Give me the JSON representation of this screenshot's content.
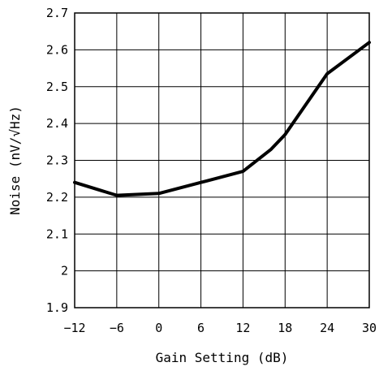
{
  "chart_data": {
    "type": "line",
    "xlabel": "Gain Setting (dB)",
    "ylabel": "Noise (nV/√Hz)",
    "xlim": [
      -12,
      30
    ],
    "ylim": [
      1.9,
      2.7
    ],
    "xticks": [
      "−12",
      "−6",
      "0",
      "6",
      "12",
      "18",
      "24",
      "30"
    ],
    "yticks": [
      "1.9",
      "2",
      "2.1",
      "2.2",
      "2.3",
      "2.4",
      "2.5",
      "2.6",
      "2.7"
    ],
    "xtick_values": [
      -12,
      -6,
      0,
      6,
      12,
      18,
      24,
      30
    ],
    "ytick_values": [
      1.9,
      2.0,
      2.1,
      2.2,
      2.3,
      2.4,
      2.5,
      2.6,
      2.7
    ],
    "grid": true,
    "series": [
      {
        "x": [
          -12,
          -6,
          0,
          6,
          12,
          16,
          18,
          24,
          30
        ],
        "y": [
          2.24,
          2.205,
          2.21,
          2.24,
          2.27,
          2.33,
          2.37,
          2.535,
          2.62
        ]
      }
    ]
  }
}
